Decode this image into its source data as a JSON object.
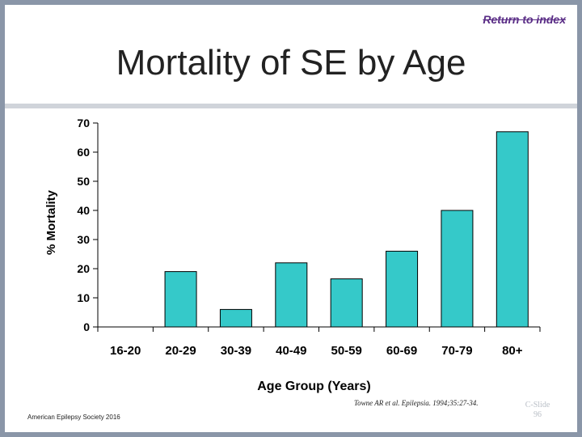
{
  "header": {
    "return_link": "Return to index"
  },
  "slide": {
    "title": "Mortality of SE by Age"
  },
  "chart_data": {
    "type": "bar",
    "title": "",
    "xlabel": "Age Group (Years)",
    "ylabel": "% Mortality",
    "categories": [
      "16-20",
      "20-29",
      "30-39",
      "40-49",
      "50-59",
      "60-69",
      "70-79",
      "80+"
    ],
    "values": [
      0,
      19,
      6,
      22,
      16.5,
      26,
      40,
      67
    ],
    "ylim": [
      0,
      70
    ],
    "yticks": [
      0,
      10,
      20,
      30,
      40,
      50,
      60,
      70
    ],
    "bar_color": "#35c9c9",
    "grid": false
  },
  "footer": {
    "left_text": "American Epilepsy Society 2016",
    "citation": "Towne AR et al. Epilepsia. 1994;35:27-34.",
    "slide_number_line1": "C-Slide",
    "slide_number_line2": "96"
  }
}
